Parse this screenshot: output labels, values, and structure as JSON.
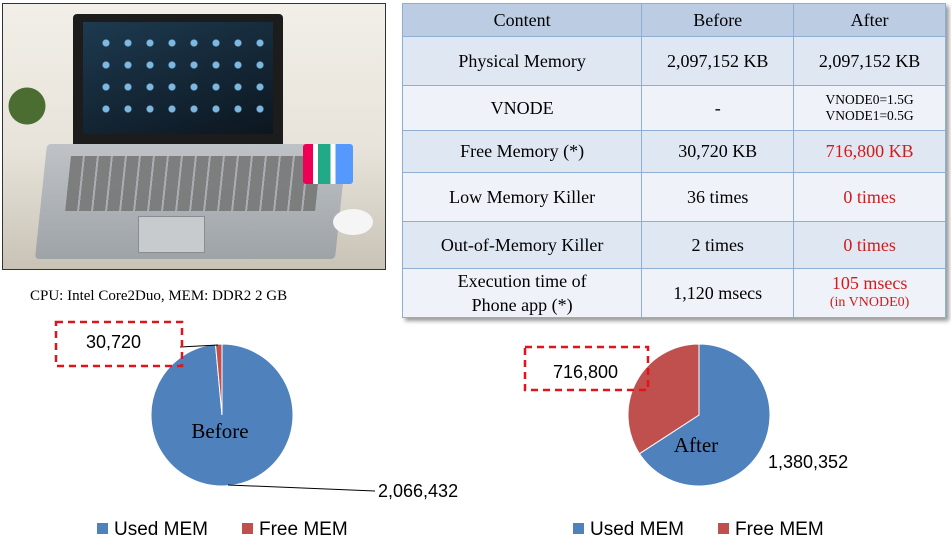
{
  "photo": {
    "alt_icon": "laptop-photo"
  },
  "caption": "CPU: Intel Core2Duo,  MEM: DDR2  2 GB",
  "table": {
    "headers": [
      "Content",
      "Before",
      "After"
    ],
    "rows": [
      {
        "label": "Physical Memory",
        "before": "2,097,152 KB",
        "after": [
          "2,097,152 KB"
        ],
        "after_red": false
      },
      {
        "label": "VNODE",
        "before": "-",
        "after": [
          "VNODE0=1.5G",
          "VNODE1=0.5G"
        ],
        "after_red": false,
        "after_small": true
      },
      {
        "label": "Free Memory (*)",
        "before": "30,720 KB",
        "after": [
          "716,800 KB"
        ],
        "after_red": true
      },
      {
        "label": "Low Memory Killer",
        "before": "36 times",
        "after": [
          "0 times"
        ],
        "after_red": true
      },
      {
        "label": "Out-of-Memory Killer",
        "before": "2 times",
        "after": [
          "0 times"
        ],
        "after_red": true
      },
      {
        "label": [
          "Execution time of",
          "Phone app (*)"
        ],
        "before": "1,120 msecs",
        "after": [
          "105 msecs",
          "(in VNODE0)"
        ],
        "after_red": true
      }
    ]
  },
  "colors": {
    "used": "#4f81bd",
    "free": "#c0504d",
    "callout": "#e0141c"
  },
  "chart_data": [
    {
      "type": "pie",
      "title": "",
      "center_label": "Before",
      "categories": [
        "Used MEM",
        "Free MEM"
      ],
      "values": [
        2066432,
        30720
      ],
      "data_labels": [
        "2,066,432",
        "30,720"
      ],
      "legend": "bottom"
    },
    {
      "type": "pie",
      "title": "",
      "center_label": "After",
      "categories": [
        "Used MEM",
        "Free MEM"
      ],
      "values": [
        1380352,
        716800
      ],
      "data_labels": [
        "1,380,352",
        "716,800"
      ],
      "legend": "bottom"
    }
  ]
}
